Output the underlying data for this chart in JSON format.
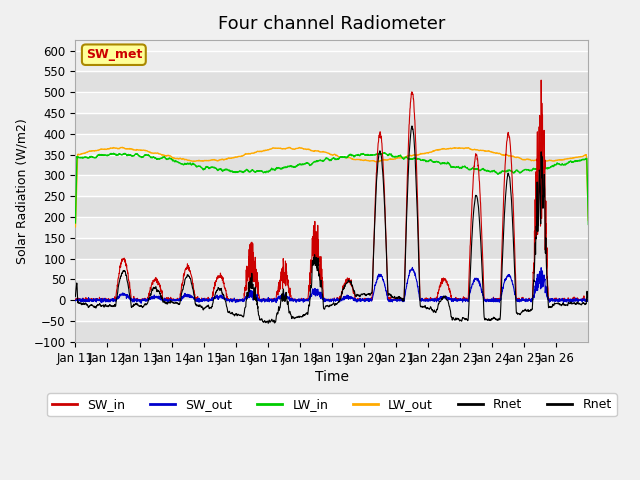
{
  "title": "Four channel Radiometer",
  "xlabel": "Time",
  "ylabel": "Solar Radiation (W/m2)",
  "ylim": [
    -100,
    625
  ],
  "yticks": [
    -100,
    -50,
    0,
    50,
    100,
    150,
    200,
    250,
    300,
    350,
    400,
    450,
    500,
    550,
    600
  ],
  "x_labels": [
    "Jan 11",
    "Jan 12",
    "Jan 13",
    "Jan 14",
    "Jan 15",
    "Jan 16",
    "Jan 17",
    "Jan 18",
    "Jan 19",
    "Jan 20",
    "Jan 21",
    "Jan 22",
    "Jan 23",
    "Jan 24",
    "Jan 25",
    "Jan 26"
  ],
  "n_days": 16,
  "colors": {
    "SW_in": "#cc0000",
    "SW_out": "#0000cc",
    "LW_in": "#00cc00",
    "LW_out": "#ffaa00",
    "Rnet_black": "#000000"
  },
  "legend_box_color": "#ffff99",
  "legend_box_edge": "#aa8800",
  "legend_text_color": "#cc0000",
  "plot_bg_color": "#f0f0f0",
  "grid_color": "#ffffff",
  "title_fontsize": 13,
  "day_peaks": [
    0,
    100,
    50,
    80,
    60,
    150,
    100,
    200,
    50,
    400,
    500,
    50,
    350,
    400,
    560,
    0
  ]
}
